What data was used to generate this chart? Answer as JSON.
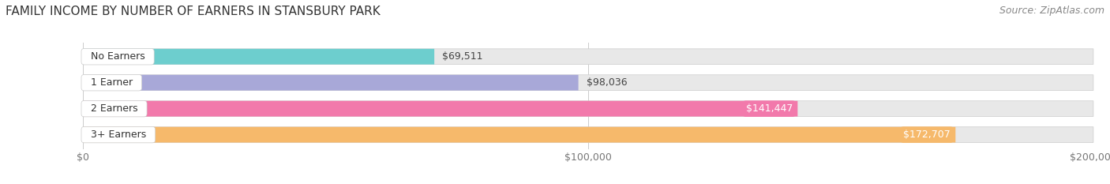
{
  "title": "FAMILY INCOME BY NUMBER OF EARNERS IN STANSBURY PARK",
  "source": "Source: ZipAtlas.com",
  "categories": [
    "No Earners",
    "1 Earner",
    "2 Earners",
    "3+ Earners"
  ],
  "values": [
    69511,
    98036,
    141447,
    172707
  ],
  "bar_colors": [
    "#6dcece",
    "#a8a8d8",
    "#f279ab",
    "#f6b96b"
  ],
  "label_colors": [
    "#666666",
    "#666666",
    "#ffffff",
    "#ffffff"
  ],
  "value_inside": [
    false,
    false,
    true,
    true
  ],
  "xlim": [
    0,
    200000
  ],
  "xticks": [
    0,
    100000,
    200000
  ],
  "xtick_labels": [
    "$0",
    "$100,000",
    "$200,000"
  ],
  "background_color": "#ffffff",
  "bar_bg_color": "#e8e8e8",
  "title_fontsize": 11,
  "source_fontsize": 9,
  "label_fontsize": 9,
  "category_fontsize": 9,
  "tick_fontsize": 9
}
